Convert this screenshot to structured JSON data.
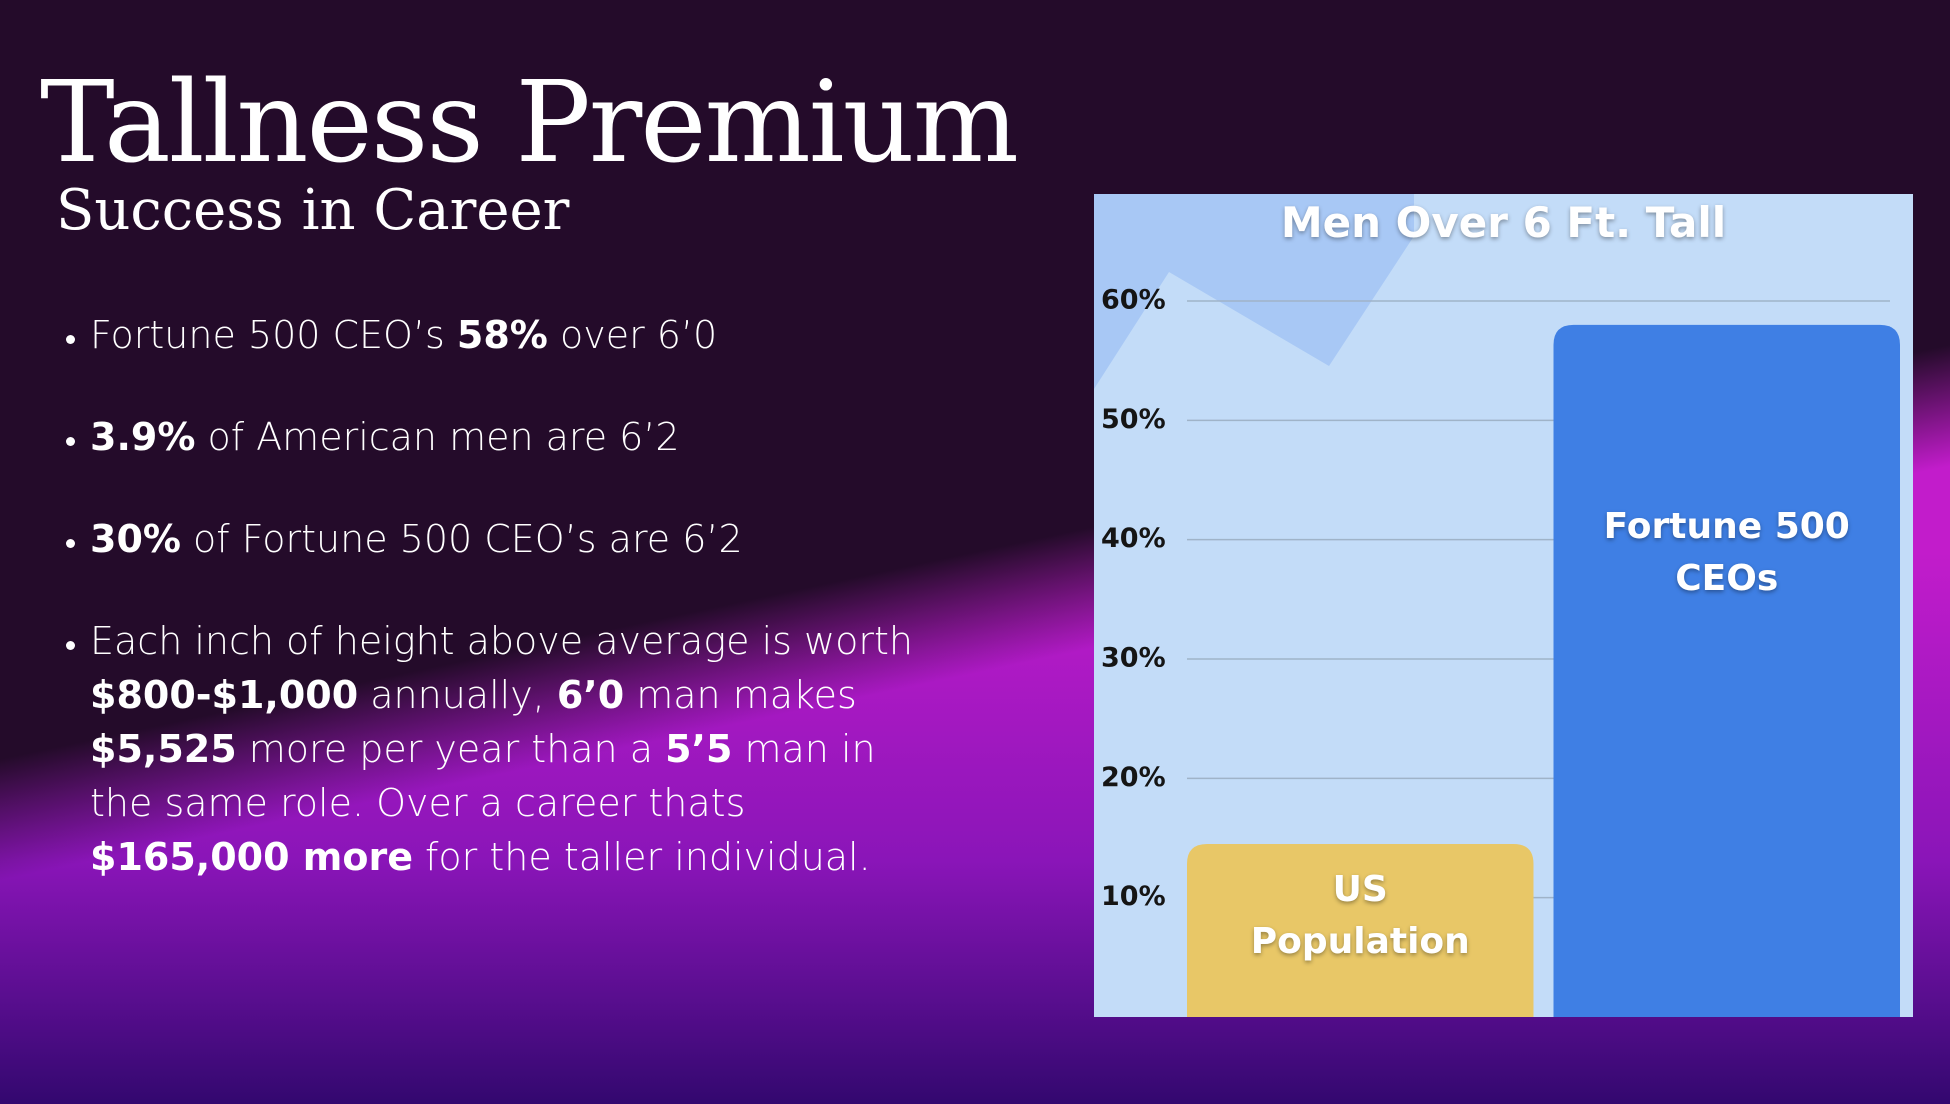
{
  "header": {
    "title": "Tallness Premium",
    "subtitle": "Success in Career"
  },
  "bullets": [
    [
      "Fortune 500 CEO’s ",
      "58%",
      " over 6’0"
    ],
    [
      "3.9%",
      " of American men are 6’2"
    ],
    [
      "30%",
      " of Fortune 500 CEO’s are 6’2"
    ],
    [
      "Each inch of height above average is worth ",
      "$800-$1,000",
      " annually, ",
      "6’0",
      " man makes ",
      "$5,525",
      " more per year than a ",
      "5’5",
      " man in the same role. Over a career thats ",
      "$165,000 more",
      " for the taller individual."
    ]
  ],
  "chart_data": {
    "type": "bar",
    "title": "Men Over 6 Ft. Tall",
    "categories": [
      "US Population",
      "Fortune 500 CEOs"
    ],
    "values": [
      14.5,
      58
    ],
    "colors": [
      "#e8c767",
      "#3f7fe4"
    ],
    "ylim": [
      0,
      60
    ],
    "yticks": [
      {
        "value": 10,
        "label": "10%"
      },
      {
        "value": 20,
        "label": "20%"
      },
      {
        "value": 30,
        "label": "30%"
      },
      {
        "value": 40,
        "label": "40%"
      },
      {
        "value": 50,
        "label": "50%"
      },
      {
        "value": 60,
        "label": "60%"
      }
    ],
    "grid": true
  }
}
